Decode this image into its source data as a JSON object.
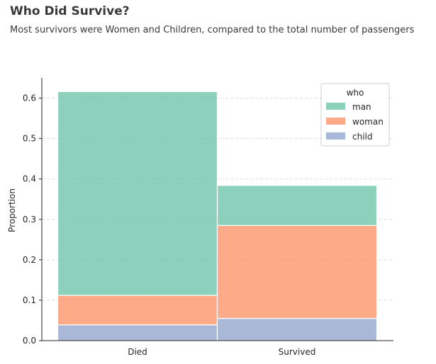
{
  "header": {
    "title": "Who Did Survive?",
    "subtitle": "Most survivors were Women and Children, compared to the total number of passengers"
  },
  "chart_data": {
    "type": "bar",
    "stacked": true,
    "categories": [
      "Died",
      "Survived"
    ],
    "series": [
      {
        "name": "child",
        "color": "#8da0cb",
        "values": [
          0.039,
          0.055
        ]
      },
      {
        "name": "woman",
        "color": "#fc8d62",
        "values": [
          0.073,
          0.23
        ]
      },
      {
        "name": "man",
        "color": "#66c2a5",
        "values": [
          0.504,
          0.099
        ]
      }
    ],
    "legend": {
      "title": "who",
      "order": [
        "man",
        "woman",
        "child"
      ],
      "placement": "top-right"
    },
    "xlabel": "",
    "ylabel": "Proportion",
    "ylim": [
      0,
      0.65
    ],
    "yticks": [
      0.0,
      0.1,
      0.2,
      0.3,
      0.4,
      0.5,
      0.6
    ],
    "ytick_labels": [
      "0.0",
      "0.1",
      "0.2",
      "0.3",
      "0.4",
      "0.5",
      "0.6"
    ],
    "grid": "y-dashed"
  }
}
